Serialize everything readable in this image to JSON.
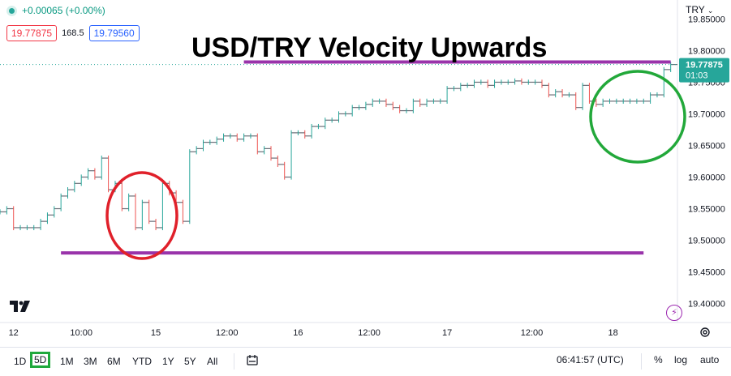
{
  "header": {
    "change_text": "+0.00065 (+0.00%)",
    "bid": "19.77875",
    "spread": "168.5",
    "ask": "19.79560",
    "currency": "TRY"
  },
  "overlay": {
    "headline": "USD/TRY Velocity Upwards",
    "annotation_color": "#9933aa",
    "red_circle_color": "#e0202a",
    "green_circle_color": "#22a83a"
  },
  "price_label": {
    "value": "19.77875",
    "countdown": "01:03",
    "color": "#26a69a"
  },
  "chart_data": {
    "type": "line",
    "symbol": "USD/TRY",
    "y_range": [
      19.37,
      19.88
    ],
    "y_ticks": [
      "19.85000",
      "19.80000",
      "19.75000",
      "19.70000",
      "19.65000",
      "19.60000",
      "19.55000",
      "19.50000",
      "19.45000",
      "19.40000"
    ],
    "x_ticks": [
      "12",
      "10:00",
      "15",
      "12:00",
      "16",
      "12:00",
      "17",
      "12:00",
      "18"
    ],
    "x_range": [
      0,
      100
    ],
    "x_tick_positions": [
      2,
      12,
      23,
      33.5,
      44,
      54.5,
      66,
      78.5,
      90.5
    ],
    "series": [
      {
        "values_x": [
          0,
          1,
          2,
          3,
          4,
          5,
          6,
          7,
          8,
          9,
          10,
          11,
          12,
          13,
          14,
          15,
          16,
          17,
          18,
          19,
          20,
          21,
          22,
          23,
          24,
          25,
          26,
          27,
          28,
          29,
          30,
          31,
          32,
          33,
          34,
          35,
          36,
          37,
          38,
          39,
          40,
          41,
          42,
          43,
          44,
          45,
          46,
          47,
          48,
          49,
          50,
          51,
          52,
          53,
          54,
          55,
          56,
          57,
          58,
          59,
          60,
          61,
          62,
          63,
          64,
          65,
          66,
          67,
          68,
          69,
          70,
          71,
          72,
          73,
          74,
          75,
          76,
          77,
          78,
          79,
          80,
          81,
          82,
          83,
          84,
          85,
          86,
          87,
          88,
          89,
          90,
          91,
          92,
          93,
          94,
          95,
          96,
          97,
          98,
          99
        ],
        "values_y": [
          19.545,
          19.55,
          19.52,
          19.52,
          19.52,
          19.52,
          19.53,
          19.54,
          19.55,
          19.57,
          19.58,
          19.59,
          19.6,
          19.61,
          19.6,
          19.63,
          19.58,
          19.59,
          19.55,
          19.57,
          19.52,
          19.56,
          19.53,
          19.52,
          19.59,
          19.575,
          19.56,
          19.53,
          19.64,
          19.645,
          19.655,
          19.655,
          19.66,
          19.665,
          19.665,
          19.66,
          19.665,
          19.665,
          19.64,
          19.645,
          19.63,
          19.62,
          19.6,
          19.67,
          19.67,
          19.665,
          19.68,
          19.68,
          19.69,
          19.69,
          19.7,
          19.7,
          19.71,
          19.71,
          19.715,
          19.72,
          19.72,
          19.715,
          19.71,
          19.705,
          19.705,
          19.72,
          19.715,
          19.72,
          19.72,
          19.72,
          19.74,
          19.74,
          19.745,
          19.745,
          19.75,
          19.75,
          19.745,
          19.75,
          19.75,
          19.75,
          19.752,
          19.75,
          19.75,
          19.75,
          19.745,
          19.73,
          19.735,
          19.73,
          19.73,
          19.71,
          19.745,
          19.72,
          19.715,
          19.72,
          19.72,
          19.72,
          19.72,
          19.72,
          19.72,
          19.72,
          19.73,
          19.73,
          19.77,
          19.778
        ]
      }
    ],
    "horizontal_lines": [
      19.782,
      19.48
    ],
    "grid": false
  },
  "bottom": {
    "timeframes": [
      "1D",
      "5D",
      "1M",
      "3M",
      "6M",
      "YTD",
      "1Y",
      "5Y",
      "All"
    ],
    "active_timeframe": "5D",
    "clock": "06:41:57 (UTC)",
    "percent": "%",
    "log": "log",
    "auto": "auto"
  }
}
